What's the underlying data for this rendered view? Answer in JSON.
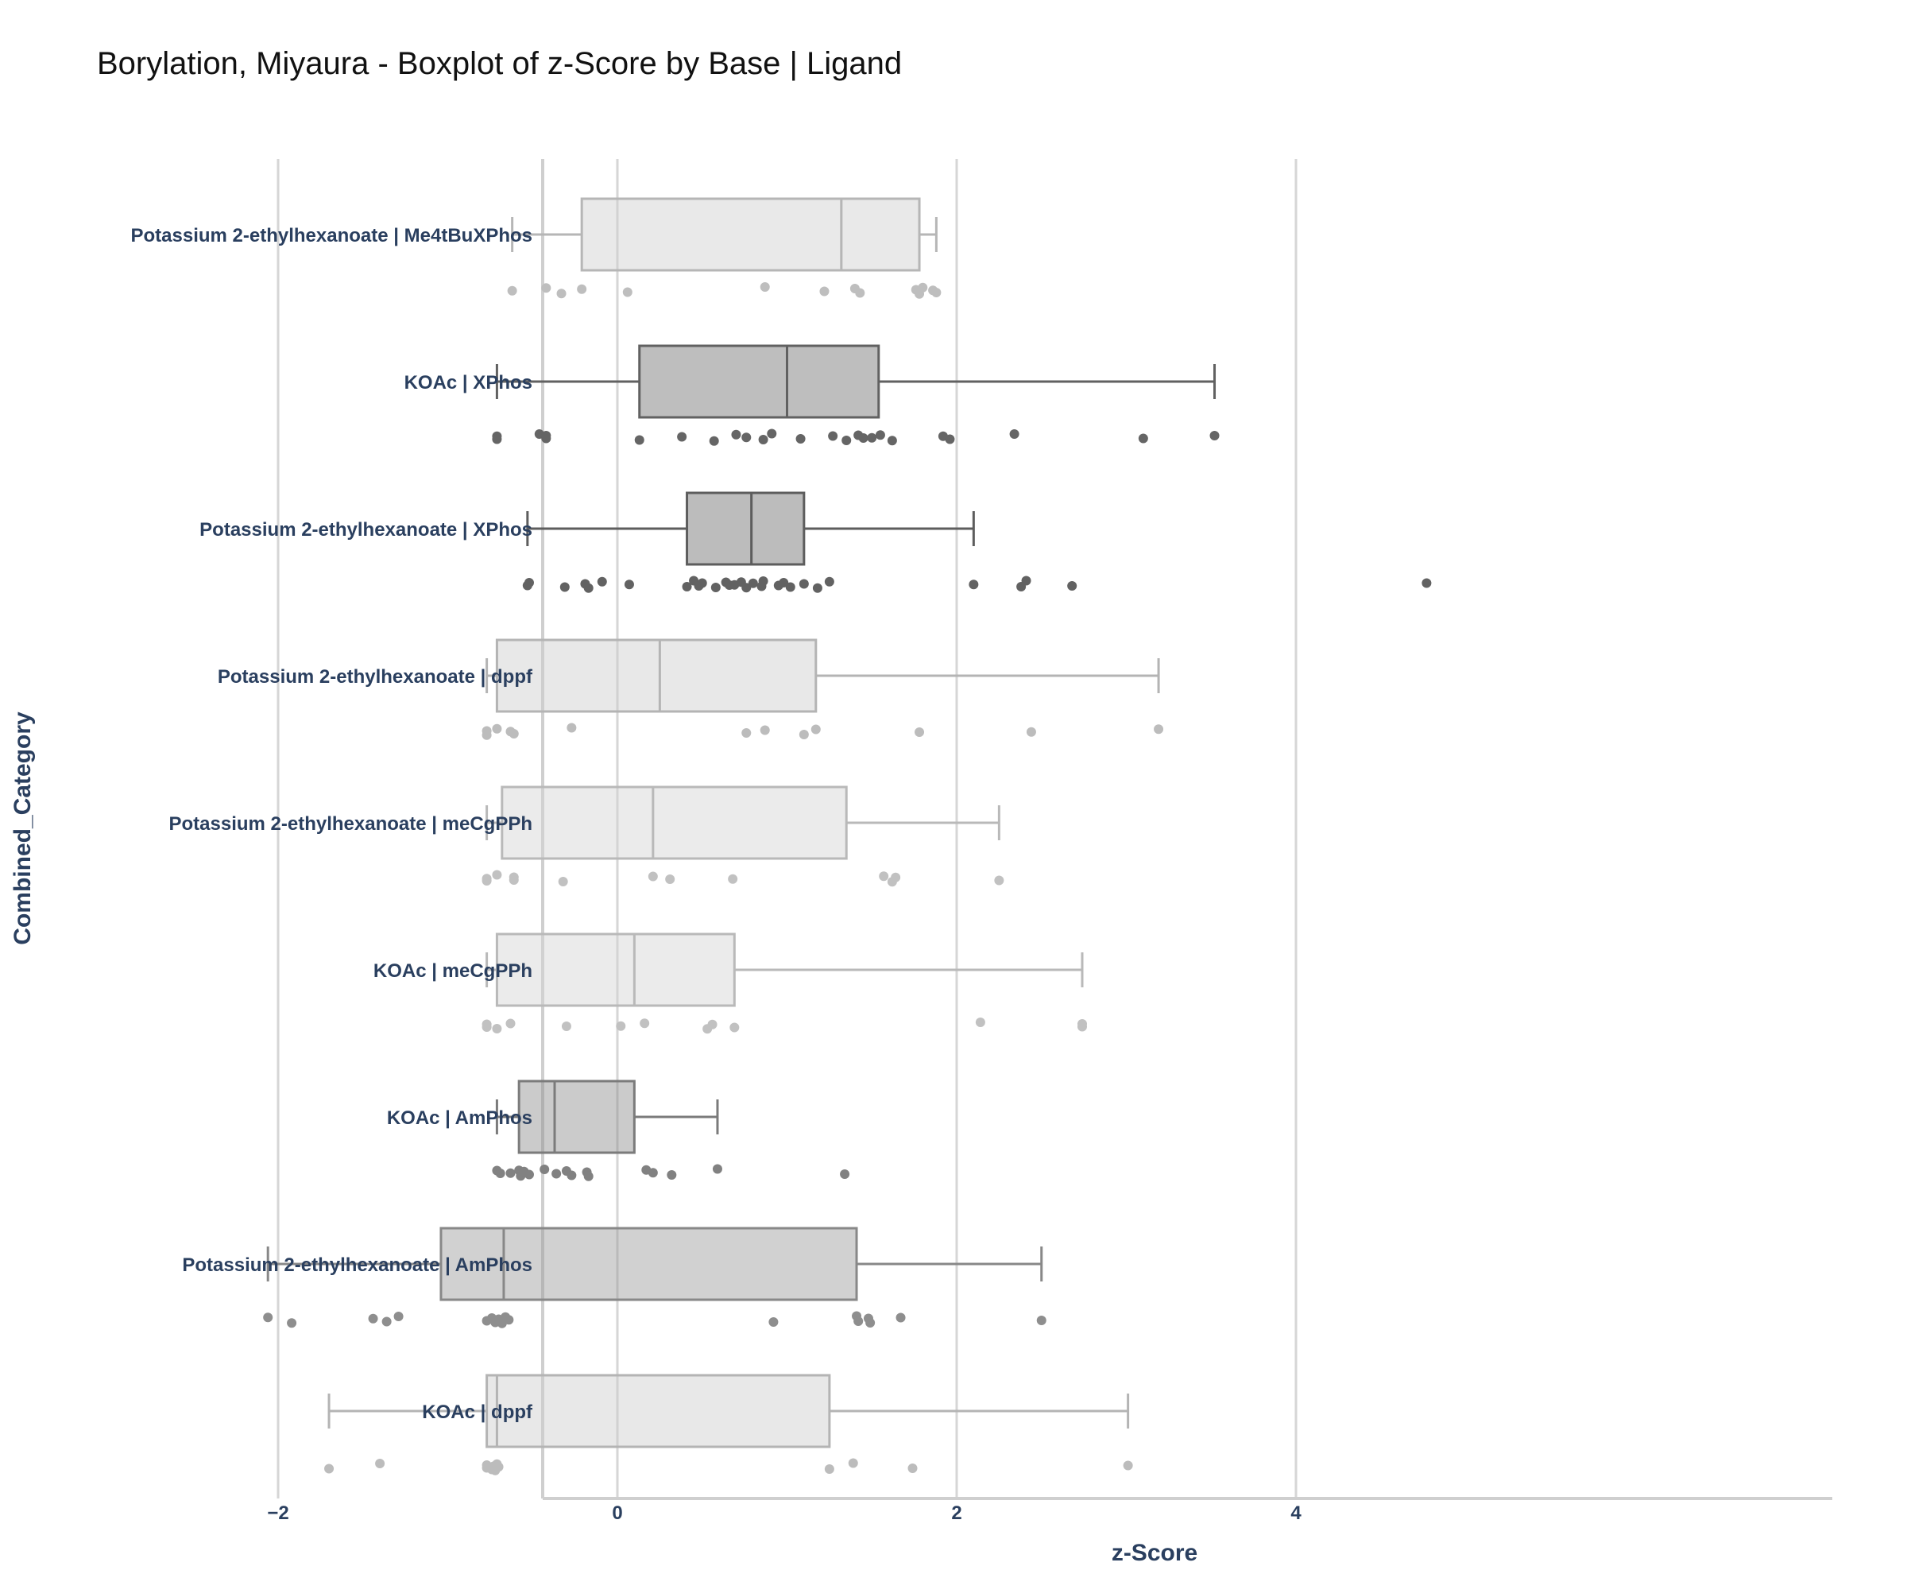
{
  "chart_data": {
    "type": "box",
    "title": "Borylation, Miyaura - Boxplot of z-Score by Base | Ligand",
    "xlabel": "z-Score",
    "ylabel": "Combined_Category",
    "xlim": [
      -2.5,
      5.1
    ],
    "xticks": [
      -2,
      0,
      2,
      4
    ],
    "xtick_labels": [
      "−2",
      "0",
      "2",
      "4"
    ],
    "grid": true,
    "categories": [
      "Potassium 2-ethylhexanoate | Me4tBuXPhos",
      "KOAc | XPhos",
      "Potassium 2-ethylhexanoate | XPhos",
      "Potassium 2-ethylhexanoate | dppf",
      "Potassium 2-ethylhexanoate | meCgPPh",
      "KOAc | meCgPPh",
      "KOAc | AmPhos",
      "Potassium 2-ethylhexanoate | AmPhos",
      "KOAc | dppf"
    ],
    "series": [
      {
        "category": "Potassium 2-ethylhexanoate | Me4tBuXPhos",
        "color": "#cfcfcf",
        "min": -0.62,
        "q1": -0.21,
        "median": 1.32,
        "q3": 1.78,
        "max": 1.88,
        "points": [
          -0.62,
          -0.42,
          -0.33,
          -0.21,
          0.06,
          0.87,
          1.22,
          1.4,
          1.43,
          1.76,
          1.78,
          1.8,
          1.86,
          1.88
        ]
      },
      {
        "category": "KOAc | XPhos",
        "color": "#6e6e6e",
        "min": -0.71,
        "q1": 0.13,
        "median": 1.0,
        "q3": 1.54,
        "max": 3.52,
        "points": [
          -0.71,
          -0.71,
          -0.46,
          -0.42,
          -0.42,
          0.13,
          0.38,
          0.57,
          0.7,
          0.76,
          0.86,
          0.91,
          1.08,
          1.27,
          1.35,
          1.42,
          1.45,
          1.5,
          1.55,
          1.62,
          1.92,
          1.96,
          2.34,
          3.1,
          3.52
        ]
      },
      {
        "category": "Potassium 2-ethylhexanoate | XPhos",
        "color": "#6a6a6a",
        "min": -0.53,
        "q1": 0.41,
        "median": 0.79,
        "q3": 1.1,
        "max": 2.1,
        "points": [
          -0.53,
          -0.52,
          -0.31,
          -0.19,
          -0.17,
          -0.09,
          0.07,
          0.41,
          0.45,
          0.48,
          0.5,
          0.58,
          0.64,
          0.66,
          0.69,
          0.73,
          0.76,
          0.8,
          0.85,
          0.86,
          0.95,
          0.98,
          1.02,
          1.1,
          1.18,
          1.25,
          2.1,
          2.38,
          2.41,
          2.68,
          4.77
        ]
      },
      {
        "category": "Potassium 2-ethylhexanoate | dppf",
        "color": "#cccccc",
        "min": -0.77,
        "q1": -0.71,
        "median": 0.25,
        "q3": 1.17,
        "max": 3.19,
        "points": [
          -0.77,
          -0.77,
          -0.71,
          -0.63,
          -0.61,
          -0.27,
          0.76,
          0.87,
          1.1,
          1.17,
          1.78,
          2.44,
          3.19
        ]
      },
      {
        "category": "Potassium 2-ethylhexanoate | meCgPPh",
        "color": "#d2d2d2",
        "min": -0.77,
        "q1": -0.68,
        "median": 0.21,
        "q3": 1.35,
        "max": 2.25,
        "points": [
          -0.77,
          -0.77,
          -0.71,
          -0.61,
          -0.61,
          -0.32,
          0.21,
          0.31,
          0.68,
          1.57,
          1.62,
          1.64,
          2.25
        ]
      },
      {
        "category": "KOAc | meCgPPh",
        "color": "#d2d2d2",
        "min": -0.77,
        "q1": -0.71,
        "median": 0.1,
        "q3": 0.69,
        "max": 2.74,
        "points": [
          -0.77,
          -0.77,
          -0.71,
          -0.63,
          -0.3,
          0.02,
          0.16,
          0.53,
          0.56,
          0.69,
          2.14,
          2.74,
          2.74
        ]
      },
      {
        "category": "KOAc | AmPhos",
        "color": "#8c8c8c",
        "min": -0.71,
        "q1": -0.58,
        "median": -0.37,
        "q3": 0.1,
        "max": 0.59,
        "points": [
          -0.71,
          -0.69,
          -0.63,
          -0.58,
          -0.57,
          -0.55,
          -0.52,
          -0.43,
          -0.36,
          -0.3,
          -0.27,
          -0.18,
          -0.17,
          0.17,
          0.21,
          0.32,
          0.59,
          1.34
        ]
      },
      {
        "category": "Potassium 2-ethylhexanoate | AmPhos",
        "color": "#9a9a9a",
        "min": -2.06,
        "q1": -1.04,
        "median": -0.67,
        "q3": 1.41,
        "max": 2.5,
        "points": [
          -2.06,
          -1.92,
          -1.44,
          -1.36,
          -1.29,
          -0.77,
          -0.74,
          -0.72,
          -0.7,
          -0.68,
          -0.66,
          -0.64,
          0.92,
          1.41,
          1.42,
          1.48,
          1.49,
          1.67,
          2.5
        ]
      },
      {
        "category": "KOAc | dppf",
        "color": "#cccccc",
        "min": -1.7,
        "q1": -0.77,
        "median": -0.71,
        "q3": 1.25,
        "max": 3.01,
        "points": [
          -1.7,
          -1.4,
          -0.77,
          -0.77,
          -0.74,
          -0.73,
          -0.72,
          -0.71,
          -0.7,
          1.25,
          1.39,
          1.74,
          3.01
        ]
      }
    ]
  }
}
